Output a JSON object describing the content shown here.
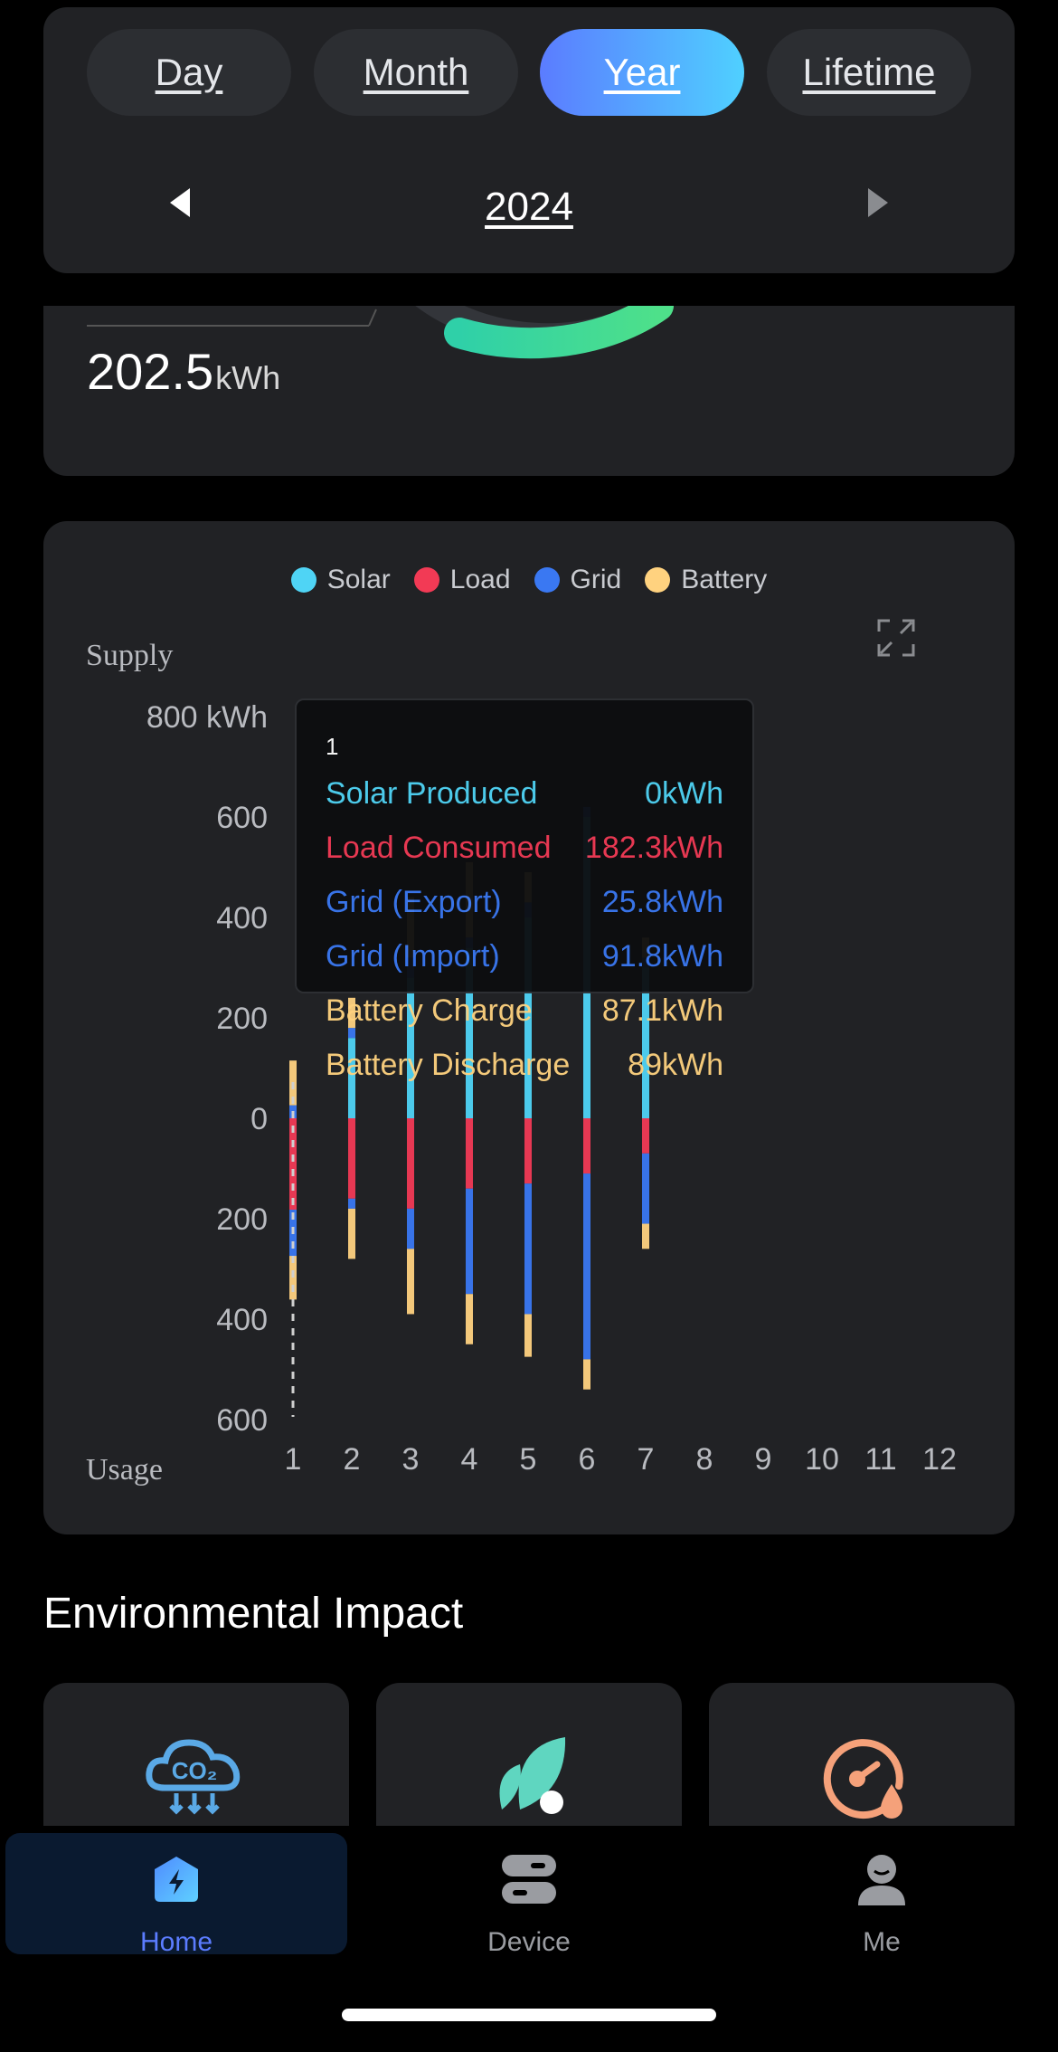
{
  "period": {
    "tabs": [
      "Day",
      "Month",
      "Year",
      "Lifetime"
    ],
    "active_tab": "Year",
    "year": "2024"
  },
  "summary": {
    "value": "202.5",
    "unit": "kWh"
  },
  "chart": {
    "legend": [
      {
        "label": "Solar",
        "color": "#4fd4f5"
      },
      {
        "label": "Load",
        "color": "#f23a55"
      },
      {
        "label": "Grid",
        "color": "#3a78f2"
      },
      {
        "label": "Battery",
        "color": "#ffd27f"
      }
    ],
    "supply_label": "Supply",
    "usage_label": "Usage",
    "tooltip": {
      "title": "1",
      "rows": [
        {
          "label": "Solar Produced",
          "value": "0kWh",
          "color": "#4fd4f5"
        },
        {
          "label": "Load Consumed",
          "value": "182.3kWh",
          "color": "#f23a55"
        },
        {
          "label": "Grid (Export)",
          "value": "25.8kWh",
          "color": "#3a78f2"
        },
        {
          "label": "Grid (Import)",
          "value": "91.8kWh",
          "color": "#3a78f2"
        },
        {
          "label": "Battery Charge",
          "value": "87.1kWh",
          "color": "#ffd27f"
        },
        {
          "label": "Battery Discharge",
          "value": "89kWh",
          "color": "#ffd27f"
        }
      ]
    }
  },
  "chart_data": {
    "type": "bar",
    "ylabel_top": "Supply",
    "ylabel_bottom": "Usage",
    "y_ticks": [
      "800 kWh",
      "600",
      "400",
      "200",
      "0",
      "200",
      "400",
      "600"
    ],
    "ylim": [
      -600,
      800
    ],
    "categories": [
      "1",
      "2",
      "3",
      "4",
      "5",
      "6",
      "7",
      "8",
      "9",
      "10",
      "11",
      "12"
    ],
    "series": [
      {
        "name": "Solar",
        "values": [
          0,
          160,
          280,
          340,
          400,
          600,
          300,
          0,
          0,
          0,
          0,
          0
        ]
      },
      {
        "name": "Grid",
        "values": [
          26,
          20,
          40,
          20,
          30,
          20,
          20,
          0,
          0,
          0,
          0,
          0
        ]
      },
      {
        "name": "Battery",
        "values": [
          89,
          60,
          120,
          150,
          60,
          0,
          40,
          0,
          0,
          0,
          0,
          0
        ]
      },
      {
        "name": "Load",
        "values": [
          -182,
          -160,
          -180,
          -140,
          -130,
          -110,
          -70,
          0,
          0,
          0,
          0,
          0
        ]
      },
      {
        "name": "Grid",
        "values": [
          -92,
          -20,
          -80,
          -210,
          -260,
          -370,
          -140,
          0,
          0,
          0,
          0,
          0
        ]
      },
      {
        "name": "Battery",
        "values": [
          -87,
          -100,
          -130,
          -100,
          -85,
          -60,
          -50,
          0,
          0,
          0,
          0,
          0
        ]
      }
    ],
    "grid": false,
    "legend_position": "top"
  },
  "environment": {
    "title": "Environmental Impact",
    "cards": [
      {
        "icon": "co2-cloud-icon",
        "color": "#5aa9e6"
      },
      {
        "icon": "leaf-icon",
        "color": "#5fd6c0"
      },
      {
        "icon": "gauge-drop-icon",
        "color": "#f5a17a"
      }
    ]
  },
  "nav": {
    "items": [
      {
        "label": "Home",
        "icon": "home-bolt-icon",
        "active": true
      },
      {
        "label": "Device",
        "icon": "device-icon",
        "active": false
      },
      {
        "label": "Me",
        "icon": "person-icon",
        "active": false
      }
    ]
  }
}
